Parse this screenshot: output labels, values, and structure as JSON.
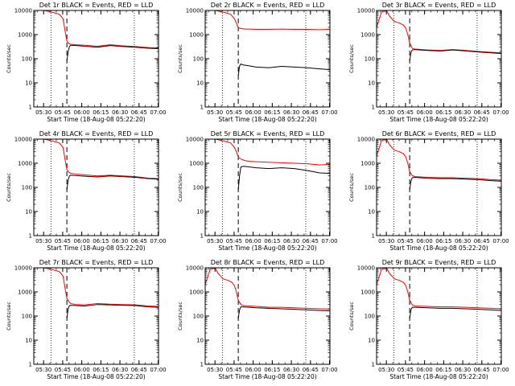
{
  "figure": {
    "legend_text": "BLACK = Events, RED = LLD",
    "xlabel": "Start Time (18-Aug-08 05:22:20)",
    "ylabel": "Counts/sec"
  },
  "chart_data": {
    "type": "line",
    "xscale": "linear",
    "yscale": "log",
    "x_units": "minutes after 05:22:20",
    "xlim": [
      0,
      98
    ],
    "ylim": [
      1,
      10000
    ],
    "x_ticks": [
      {
        "value": 7.7,
        "label": "05:30"
      },
      {
        "value": 22.7,
        "label": "05:45"
      },
      {
        "value": 37.7,
        "label": "06:00"
      },
      {
        "value": 52.7,
        "label": "06:15"
      },
      {
        "value": 67.7,
        "label": "06:30"
      },
      {
        "value": 82.7,
        "label": "06:45"
      },
      {
        "value": 97.7,
        "label": "07:00"
      }
    ],
    "y_ticks": [
      {
        "value": 1,
        "label": "1"
      },
      {
        "value": 10,
        "label": "10"
      },
      {
        "value": 100,
        "label": "100"
      },
      {
        "value": 1000,
        "label": "1000"
      },
      {
        "value": 10000,
        "label": "10000"
      }
    ],
    "colors": {
      "events": "#000000",
      "lld": "#ff0000",
      "axes": "#000000"
    },
    "panels": [
      {
        "title": "Det 1r BLACK = Events, RED = LLD",
        "markers_dotted": [
          13.5,
          79
        ],
        "markers_dashed": [
          26
        ],
        "series": [
          {
            "name": "LLD",
            "color": "#ff0000",
            "x": [
              0,
              5,
              8,
              12,
              16,
              20,
              23,
              24.5,
              26,
              27.5,
              29,
              33,
              40,
              50,
              60,
              70,
              80,
              90,
              98
            ],
            "y": [
              12000,
              13000,
              11000,
              9000,
              8000,
              7000,
              4500,
              1500,
              550,
              420,
              400,
              380,
              360,
              330,
              380,
              340,
              320,
              290,
              280
            ]
          },
          {
            "name": "Events",
            "color": "#000000",
            "x": [
              26,
              27,
              28,
              29,
              33,
              40,
              50,
              60,
              70,
              80,
              90,
              98
            ],
            "y": [
              80,
              200,
              320,
              360,
              350,
              330,
              300,
              350,
              320,
              300,
              270,
              260
            ]
          }
        ]
      },
      {
        "title": "Det 2r BLACK = Events, RED = LLD",
        "markers_dotted": [
          13.5,
          79
        ],
        "markers_dashed": [
          26
        ],
        "series": [
          {
            "name": "LLD",
            "color": "#ff0000",
            "x": [
              0,
              5,
              8,
              12,
              16,
              20,
              23,
              24.5,
              26,
              28,
              31,
              35,
              40,
              50,
              60,
              70,
              80,
              90,
              98
            ],
            "y": [
              12000,
              13000,
              11000,
              9000,
              8000,
              7000,
              4500,
              3000,
              1900,
              1800,
              1700,
              1700,
              1650,
              1650,
              1700,
              1650,
              1650,
              1600,
              1650
            ]
          },
          {
            "name": "Events",
            "color": "#000000",
            "x": [
              26,
              27,
              28,
              30,
              35,
              40,
              50,
              60,
              70,
              80,
              90,
              98
            ],
            "y": [
              20,
              50,
              60,
              55,
              50,
              45,
              42,
              48,
              45,
              42,
              38,
              35
            ]
          }
        ]
      },
      {
        "title": "Det 3r BLACK = Events, RED = LLD",
        "markers_dotted": [
          13.5,
          79
        ],
        "markers_dashed": [
          26
        ],
        "series": [
          {
            "name": "LLD",
            "color": "#ff0000",
            "x": [
              0,
              4,
              8,
              10,
              14,
              18,
              21,
              23,
              24.5,
              26,
              28,
              30,
              40,
              50,
              60,
              70,
              80,
              90,
              98
            ],
            "y": [
              2000,
              9000,
              9500,
              6000,
              3500,
              3000,
              2500,
              1800,
              1000,
              450,
              270,
              250,
              230,
              220,
              240,
              220,
              200,
              185,
              175
            ]
          },
          {
            "name": "Events",
            "color": "#000000",
            "x": [
              26,
              27,
              28,
              30,
              40,
              50,
              60,
              70,
              80,
              90,
              98
            ],
            "y": [
              80,
              180,
              230,
              240,
              220,
              210,
              230,
              210,
              190,
              175,
              165
            ]
          }
        ]
      },
      {
        "title": "Det 4r BLACK = Events, RED = LLD",
        "markers_dotted": [
          13.5,
          79
        ],
        "markers_dashed": [
          26
        ],
        "series": [
          {
            "name": "LLD",
            "color": "#ff0000",
            "x": [
              0,
              5,
              8,
              12,
              16,
              20,
              23,
              24.5,
              26,
              27.5,
              29,
              33,
              40,
              50,
              60,
              70,
              80,
              90,
              98
            ],
            "y": [
              12000,
              13000,
              11000,
              9000,
              8000,
              7000,
              4500,
              1500,
              550,
              420,
              380,
              360,
              330,
              300,
              320,
              300,
              280,
              240,
              230
            ]
          },
          {
            "name": "Events",
            "color": "#000000",
            "x": [
              26,
              27,
              28,
              29,
              33,
              40,
              50,
              60,
              70,
              80,
              90,
              98
            ],
            "y": [
              80,
              200,
              300,
              320,
              310,
              290,
              270,
              300,
              280,
              260,
              230,
              220
            ]
          }
        ]
      },
      {
        "title": "Det 5r BLACK = Events, RED = LLD",
        "markers_dotted": [
          13.5,
          79
        ],
        "markers_dashed": [
          26
        ],
        "series": [
          {
            "name": "LLD",
            "color": "#ff0000",
            "x": [
              0,
              5,
              8,
              12,
              16,
              20,
              23,
              24.5,
              26,
              28,
              31,
              35,
              40,
              50,
              60,
              70,
              80,
              90,
              98
            ],
            "y": [
              12000,
              13000,
              11000,
              9000,
              8000,
              7000,
              4500,
              3000,
              1800,
              1500,
              1300,
              1200,
              1150,
              1100,
              1050,
              1000,
              950,
              850,
              900
            ]
          },
          {
            "name": "Events",
            "color": "#000000",
            "x": [
              26,
              27,
              28,
              30,
              35,
              40,
              50,
              60,
              70,
              80,
              90,
              98
            ],
            "y": [
              80,
              300,
              700,
              750,
              700,
              650,
              600,
              650,
              600,
              500,
              400,
              380
            ]
          }
        ]
      },
      {
        "title": "Det 6r BLACK = Events, RED = LLD",
        "markers_dotted": [
          13.5,
          79
        ],
        "markers_dashed": [
          26
        ],
        "series": [
          {
            "name": "LLD",
            "color": "#ff0000",
            "x": [
              0,
              4,
              8,
              10,
              14,
              18,
              21,
              23,
              24.5,
              26,
              28,
              30,
              40,
              50,
              60,
              70,
              80,
              90,
              98
            ],
            "y": [
              2000,
              9000,
              9500,
              6000,
              3500,
              3000,
              2500,
              1800,
              1000,
              450,
              310,
              280,
              260,
              250,
              250,
              240,
              230,
              210,
              200
            ]
          },
          {
            "name": "Events",
            "color": "#000000",
            "x": [
              26,
              27,
              28,
              30,
              40,
              50,
              60,
              70,
              80,
              90,
              98
            ],
            "y": [
              80,
              180,
              250,
              260,
              240,
              230,
              230,
              220,
              210,
              190,
              180
            ]
          }
        ]
      },
      {
        "title": "Det 7r BLACK = Events, RED = LLD",
        "markers_dotted": [
          13.5,
          79
        ],
        "markers_dashed": [
          26
        ],
        "series": [
          {
            "name": "LLD",
            "color": "#ff0000",
            "x": [
              0,
              5,
              8,
              12,
              16,
              20,
              23,
              24.5,
              26,
              27.5,
              29,
              33,
              40,
              50,
              60,
              70,
              80,
              90,
              98
            ],
            "y": [
              12000,
              13000,
              11000,
              9000,
              8000,
              7000,
              4500,
              1500,
              550,
              400,
              330,
              300,
              290,
              330,
              310,
              300,
              290,
              260,
              250
            ]
          },
          {
            "name": "Events",
            "color": "#000000",
            "x": [
              26,
              27,
              28,
              29,
              33,
              40,
              50,
              60,
              70,
              80,
              90,
              98
            ],
            "y": [
              80,
              200,
              270,
              280,
              270,
              260,
              300,
              290,
              280,
              270,
              240,
              230
            ]
          }
        ]
      },
      {
        "title": "Det 8r BLACK = Events, RED = LLD",
        "markers_dotted": [
          13.5,
          79
        ],
        "markers_dashed": [
          26
        ],
        "series": [
          {
            "name": "LLD",
            "color": "#ff0000",
            "x": [
              0,
              4,
              8,
              10,
              14,
              18,
              21,
              23,
              24.5,
              26,
              28,
              30,
              40,
              50,
              60,
              70,
              80,
              90,
              98
            ],
            "y": [
              2000,
              9000,
              9500,
              6000,
              3500,
              3000,
              2500,
              1800,
              1000,
              450,
              300,
              270,
              250,
              230,
              230,
              220,
              210,
              200,
              195
            ]
          },
          {
            "name": "Events",
            "color": "#000000",
            "x": [
              26,
              27,
              28,
              30,
              40,
              50,
              60,
              70,
              80,
              90,
              98
            ],
            "y": [
              80,
              180,
              240,
              240,
              220,
              210,
              200,
              190,
              180,
              170,
              165
            ]
          }
        ]
      },
      {
        "title": "Det 9r BLACK = Events, RED = LLD",
        "markers_dotted": [
          13.5,
          79
        ],
        "markers_dashed": [
          26
        ],
        "series": [
          {
            "name": "LLD",
            "color": "#ff0000",
            "x": [
              0,
              4,
              8,
              10,
              14,
              18,
              21,
              23,
              24.5,
              26,
              28,
              30,
              40,
              50,
              60,
              70,
              80,
              90,
              98
            ],
            "y": [
              2000,
              9000,
              9500,
              6000,
              3500,
              3000,
              2500,
              1800,
              1000,
              450,
              290,
              260,
              250,
              240,
              240,
              230,
              220,
              210,
              200
            ]
          },
          {
            "name": "Events",
            "color": "#000000",
            "x": [
              26,
              27,
              28,
              30,
              40,
              50,
              60,
              70,
              80,
              90,
              98
            ],
            "y": [
              80,
              180,
              230,
              230,
              220,
              210,
              210,
              200,
              190,
              180,
              170
            ]
          }
        ]
      }
    ]
  }
}
